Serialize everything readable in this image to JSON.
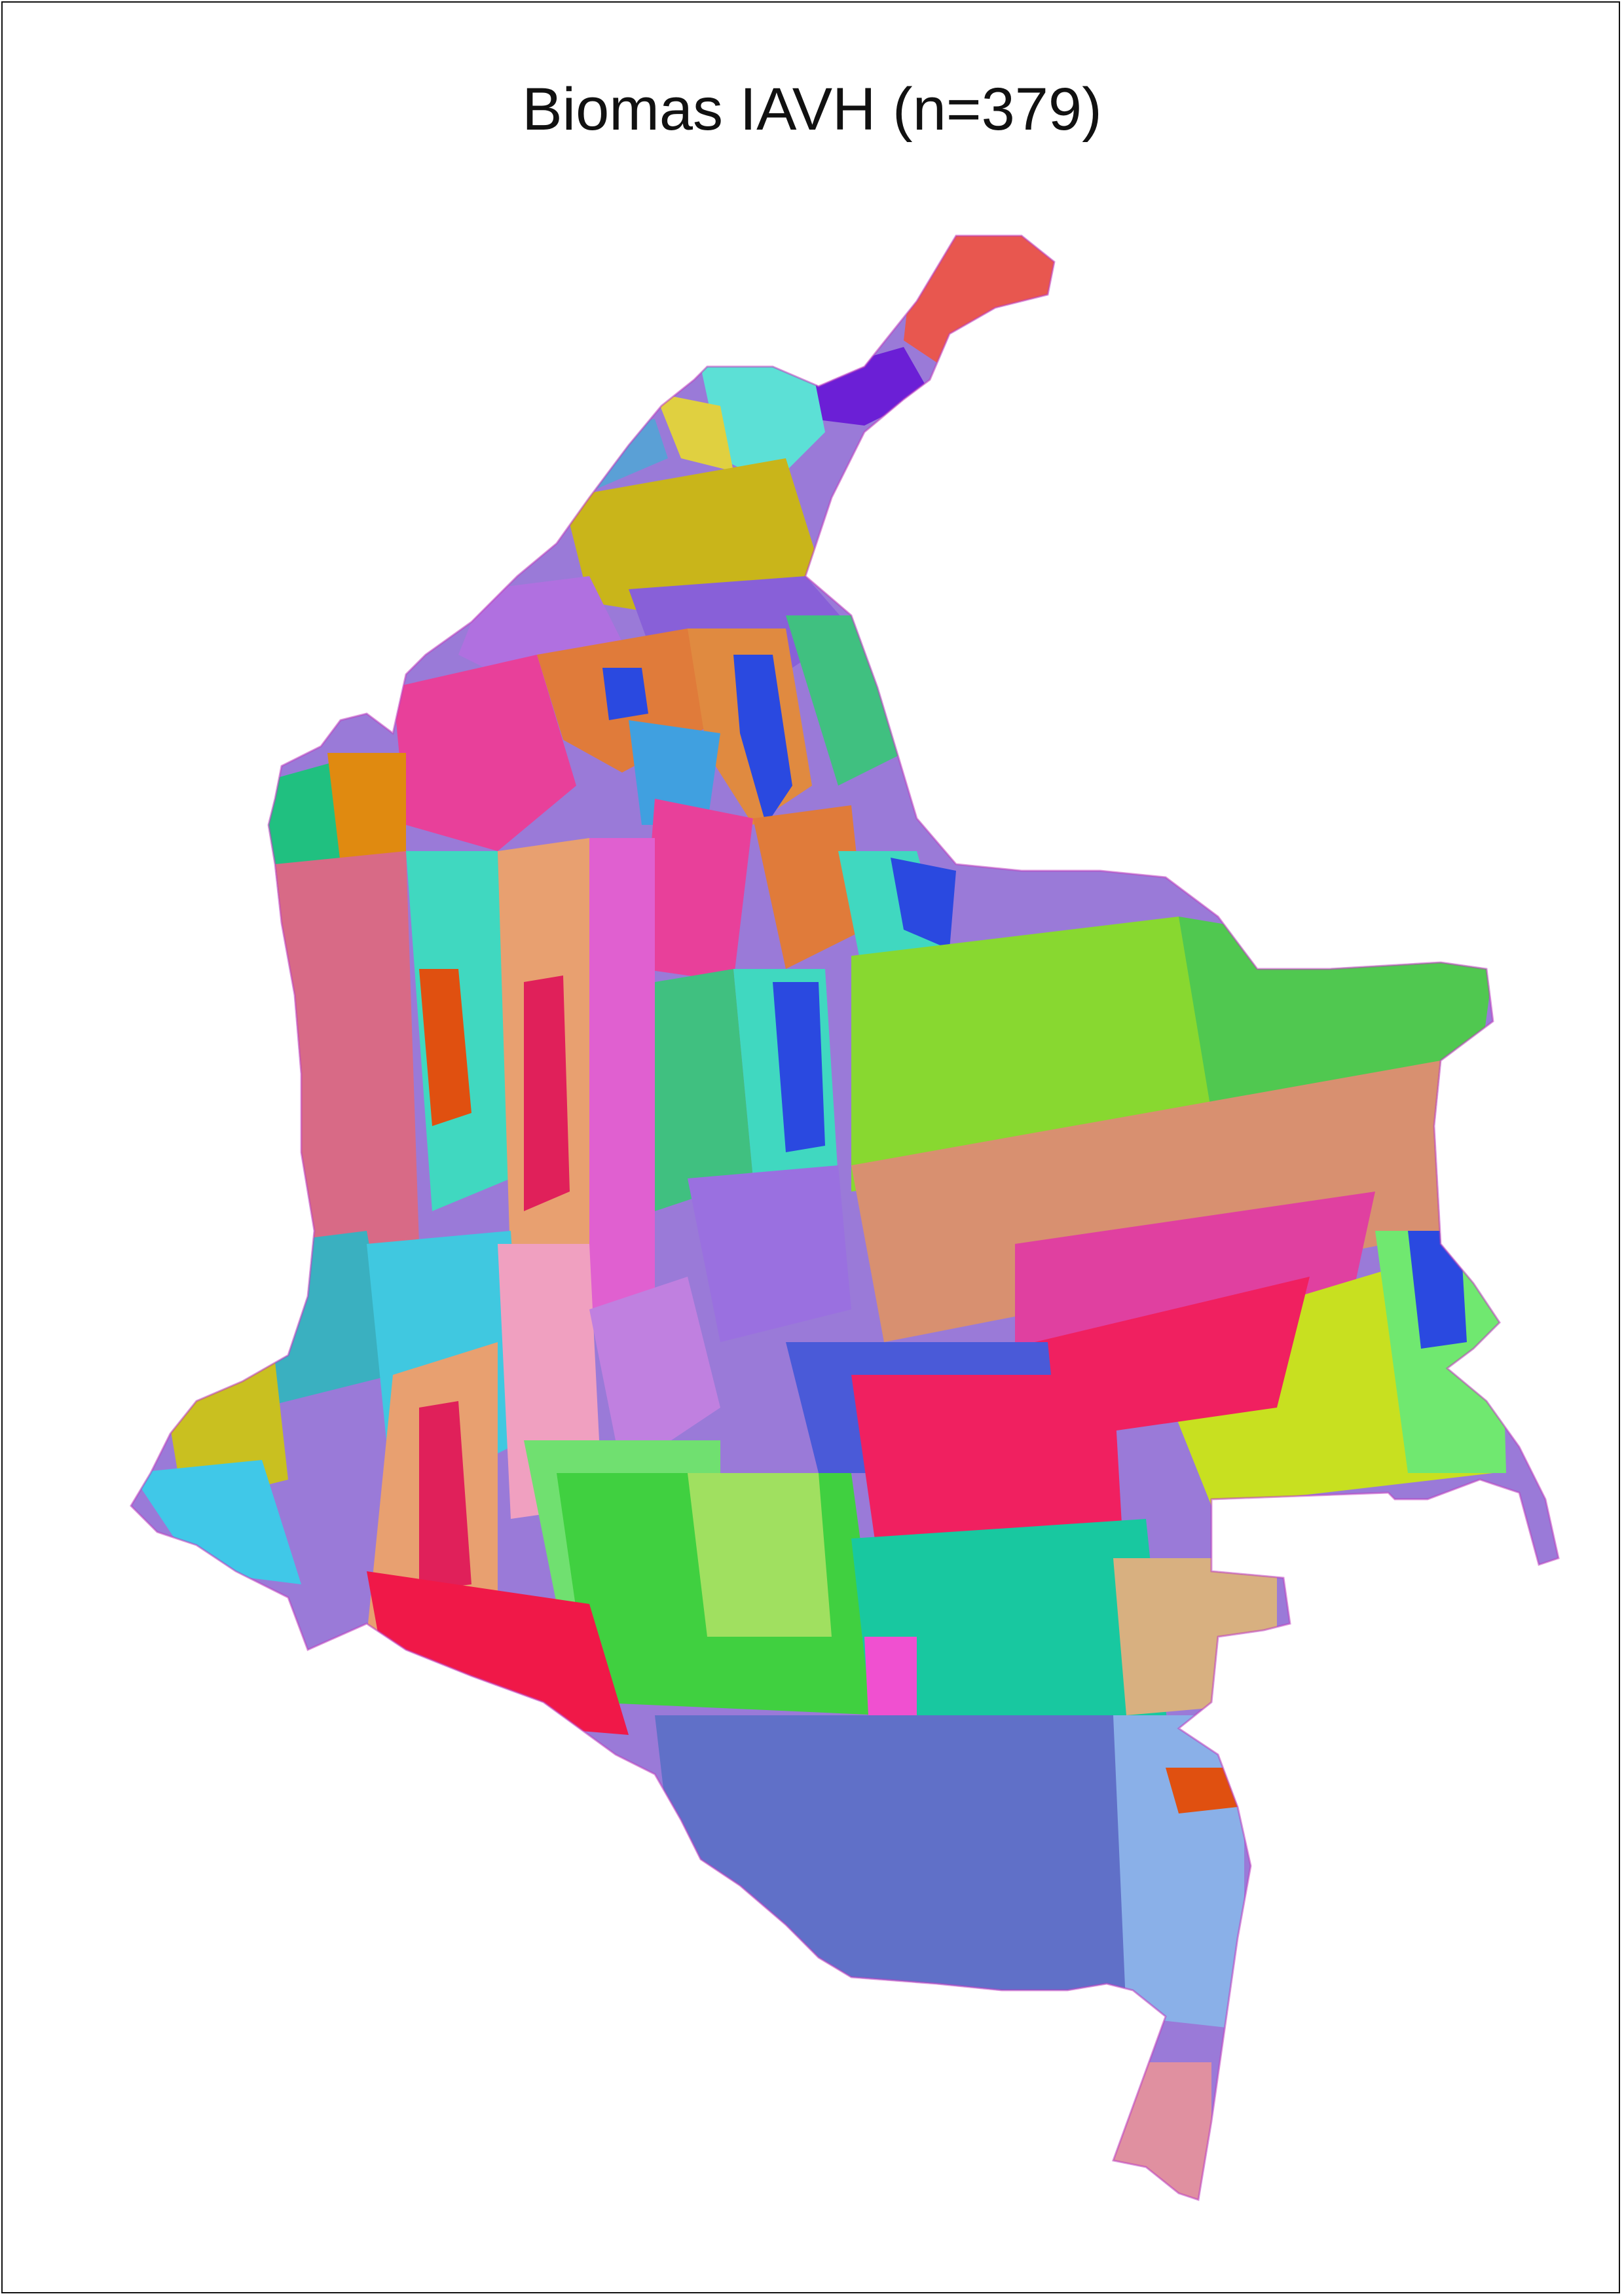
{
  "map": {
    "title": "Biomas IAVH (n=379)",
    "region": "Colombia",
    "palette": {
      "guajira_red": "#e8574f",
      "guajira_purple": "#6b1fd6",
      "guajira_cyan": "#5ce0d6",
      "caribbean_olive": "#c9b51a",
      "caribbean_blue": "#5aa0d6",
      "caribbean_violet": "#b070e0",
      "andes_magenta": "#e8409a",
      "andes_orange": "#e07b3a",
      "andes_blue": "#2a49e0",
      "andes_crimson": "#e0205a",
      "andes_pink": "#e060d0",
      "andes_tan": "#e8a070",
      "pacific_rose": "#d86a86",
      "pacific_cyan": "#40c8e8",
      "pacific_green": "#20c080",
      "pacific_teal": "#3ab0c0",
      "llanos_lime": "#88d830",
      "llanos_salmon": "#d89070",
      "llanos_green": "#50c850",
      "llanos_magenta": "#e040a0",
      "llanos_yellow": "#c8e020",
      "llanos_bright": "#70e870",
      "amazon_blue": "#6070c8",
      "amazon_teal": "#18c8a0",
      "amazon_green": "#40d040",
      "amazon_crimson": "#f02060",
      "amazon_tan": "#d8b080",
      "amazon_lightblue": "#8ab0e8",
      "amazon_rose": "#e090a0",
      "amazon_pink": "#f050d0",
      "amazon_orange": "#e05010",
      "putumayo_red": "#f01848",
      "vaupes_blue": "#4a5ad8"
    }
  }
}
